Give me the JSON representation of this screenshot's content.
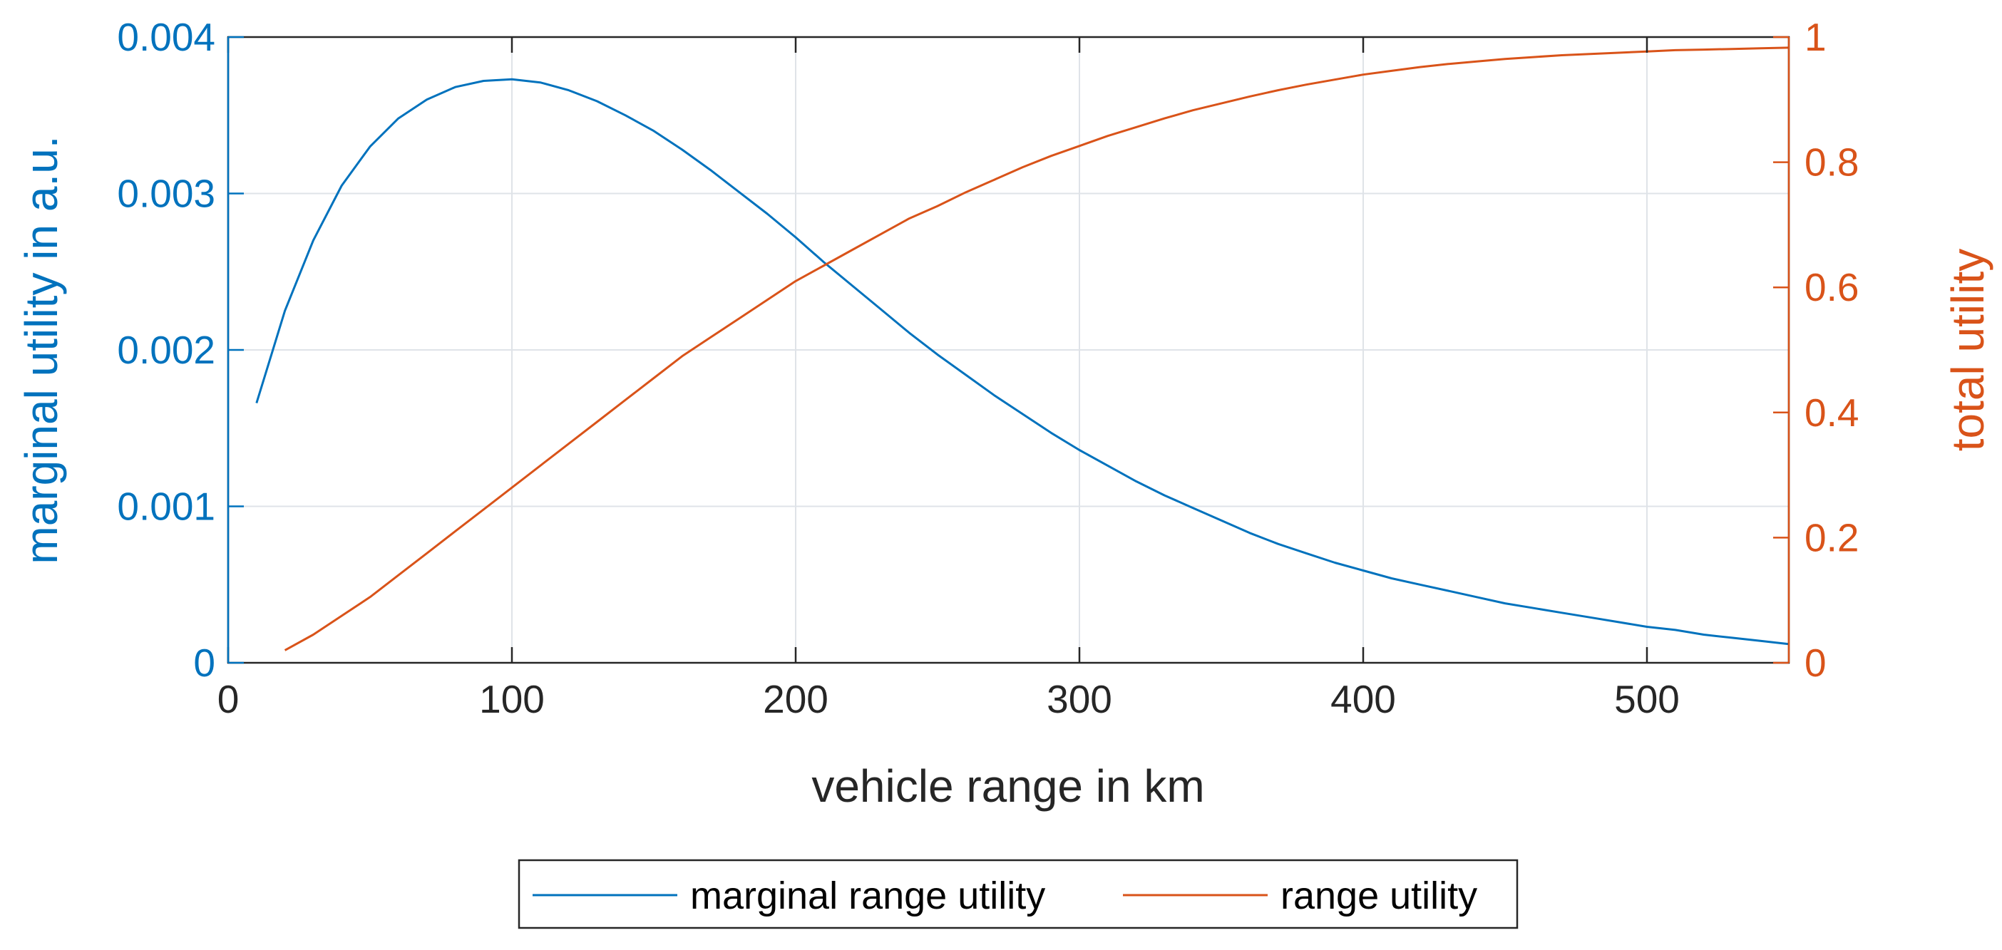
{
  "chart_data": {
    "type": "line",
    "xlabel": "vehicle range in km",
    "ylabel_left": "marginal utility in a.u.",
    "ylabel_right": "total utility",
    "xlim": [
      0,
      550
    ],
    "ylim_left": [
      0,
      0.004
    ],
    "ylim_right": [
      0,
      1
    ],
    "xticks": [
      0,
      100,
      200,
      300,
      400,
      500
    ],
    "xtick_labels": [
      "0",
      "100",
      "200",
      "300",
      "400",
      "500"
    ],
    "yticks_left": [
      0,
      0.001,
      0.002,
      0.003,
      0.004
    ],
    "ytick_labels_left": [
      "0",
      "0.001",
      "0.002",
      "0.003",
      "0.004"
    ],
    "yticks_right": [
      0,
      0.2,
      0.4,
      0.6,
      0.8,
      1
    ],
    "ytick_labels_right": [
      "0",
      "0.2",
      "0.4",
      "0.6",
      "0.8",
      "1"
    ],
    "grid": true,
    "legend_position": "bottom-outside",
    "series": [
      {
        "name": "marginal range utility",
        "axis": "left",
        "color": "#0072bd",
        "x": [
          10,
          20,
          30,
          40,
          50,
          60,
          70,
          80,
          90,
          100,
          110,
          120,
          130,
          140,
          150,
          160,
          170,
          180,
          190,
          200,
          210,
          220,
          230,
          240,
          250,
          260,
          270,
          280,
          290,
          300,
          310,
          320,
          330,
          340,
          350,
          360,
          370,
          380,
          390,
          400,
          410,
          420,
          430,
          440,
          450,
          460,
          470,
          480,
          490,
          500,
          510,
          520,
          530,
          540,
          550
        ],
        "y": [
          0.00166,
          0.00225,
          0.0027,
          0.00305,
          0.0033,
          0.00348,
          0.0036,
          0.00368,
          0.00372,
          0.00373,
          0.00371,
          0.00366,
          0.00359,
          0.0035,
          0.0034,
          0.00328,
          0.00315,
          0.00301,
          0.00287,
          0.00272,
          0.00256,
          0.00241,
          0.00226,
          0.00211,
          0.00197,
          0.00184,
          0.00171,
          0.00159,
          0.00147,
          0.00136,
          0.00126,
          0.00116,
          0.00107,
          0.00099,
          0.00091,
          0.00083,
          0.00076,
          0.0007,
          0.00064,
          0.00059,
          0.00054,
          0.0005,
          0.00046,
          0.00042,
          0.00038,
          0.00035,
          0.00032,
          0.00029,
          0.00026,
          0.00023,
          0.00021,
          0.00018,
          0.00016,
          0.00014,
          0.00012
        ]
      },
      {
        "name": "range utility",
        "axis": "right",
        "color": "#d95319",
        "x": [
          20,
          30,
          40,
          50,
          60,
          70,
          80,
          90,
          100,
          110,
          120,
          130,
          140,
          150,
          160,
          170,
          180,
          190,
          200,
          210,
          220,
          230,
          240,
          250,
          260,
          270,
          280,
          290,
          300,
          310,
          320,
          330,
          340,
          350,
          360,
          370,
          380,
          390,
          400,
          410,
          420,
          430,
          440,
          450,
          460,
          470,
          480,
          490,
          500,
          510,
          520,
          530,
          540,
          550
        ],
        "y": [
          0.02,
          0.045,
          0.075,
          0.105,
          0.14,
          0.175,
          0.21,
          0.245,
          0.28,
          0.315,
          0.35,
          0.385,
          0.42,
          0.455,
          0.49,
          0.52,
          0.55,
          0.58,
          0.61,
          0.635,
          0.66,
          0.685,
          0.71,
          0.73,
          0.752,
          0.772,
          0.792,
          0.81,
          0.826,
          0.842,
          0.856,
          0.87,
          0.883,
          0.894,
          0.905,
          0.915,
          0.924,
          0.932,
          0.94,
          0.946,
          0.952,
          0.957,
          0.961,
          0.965,
          0.968,
          0.971,
          0.973,
          0.975,
          0.977,
          0.979,
          0.98,
          0.981,
          0.982,
          0.983
        ]
      }
    ]
  }
}
